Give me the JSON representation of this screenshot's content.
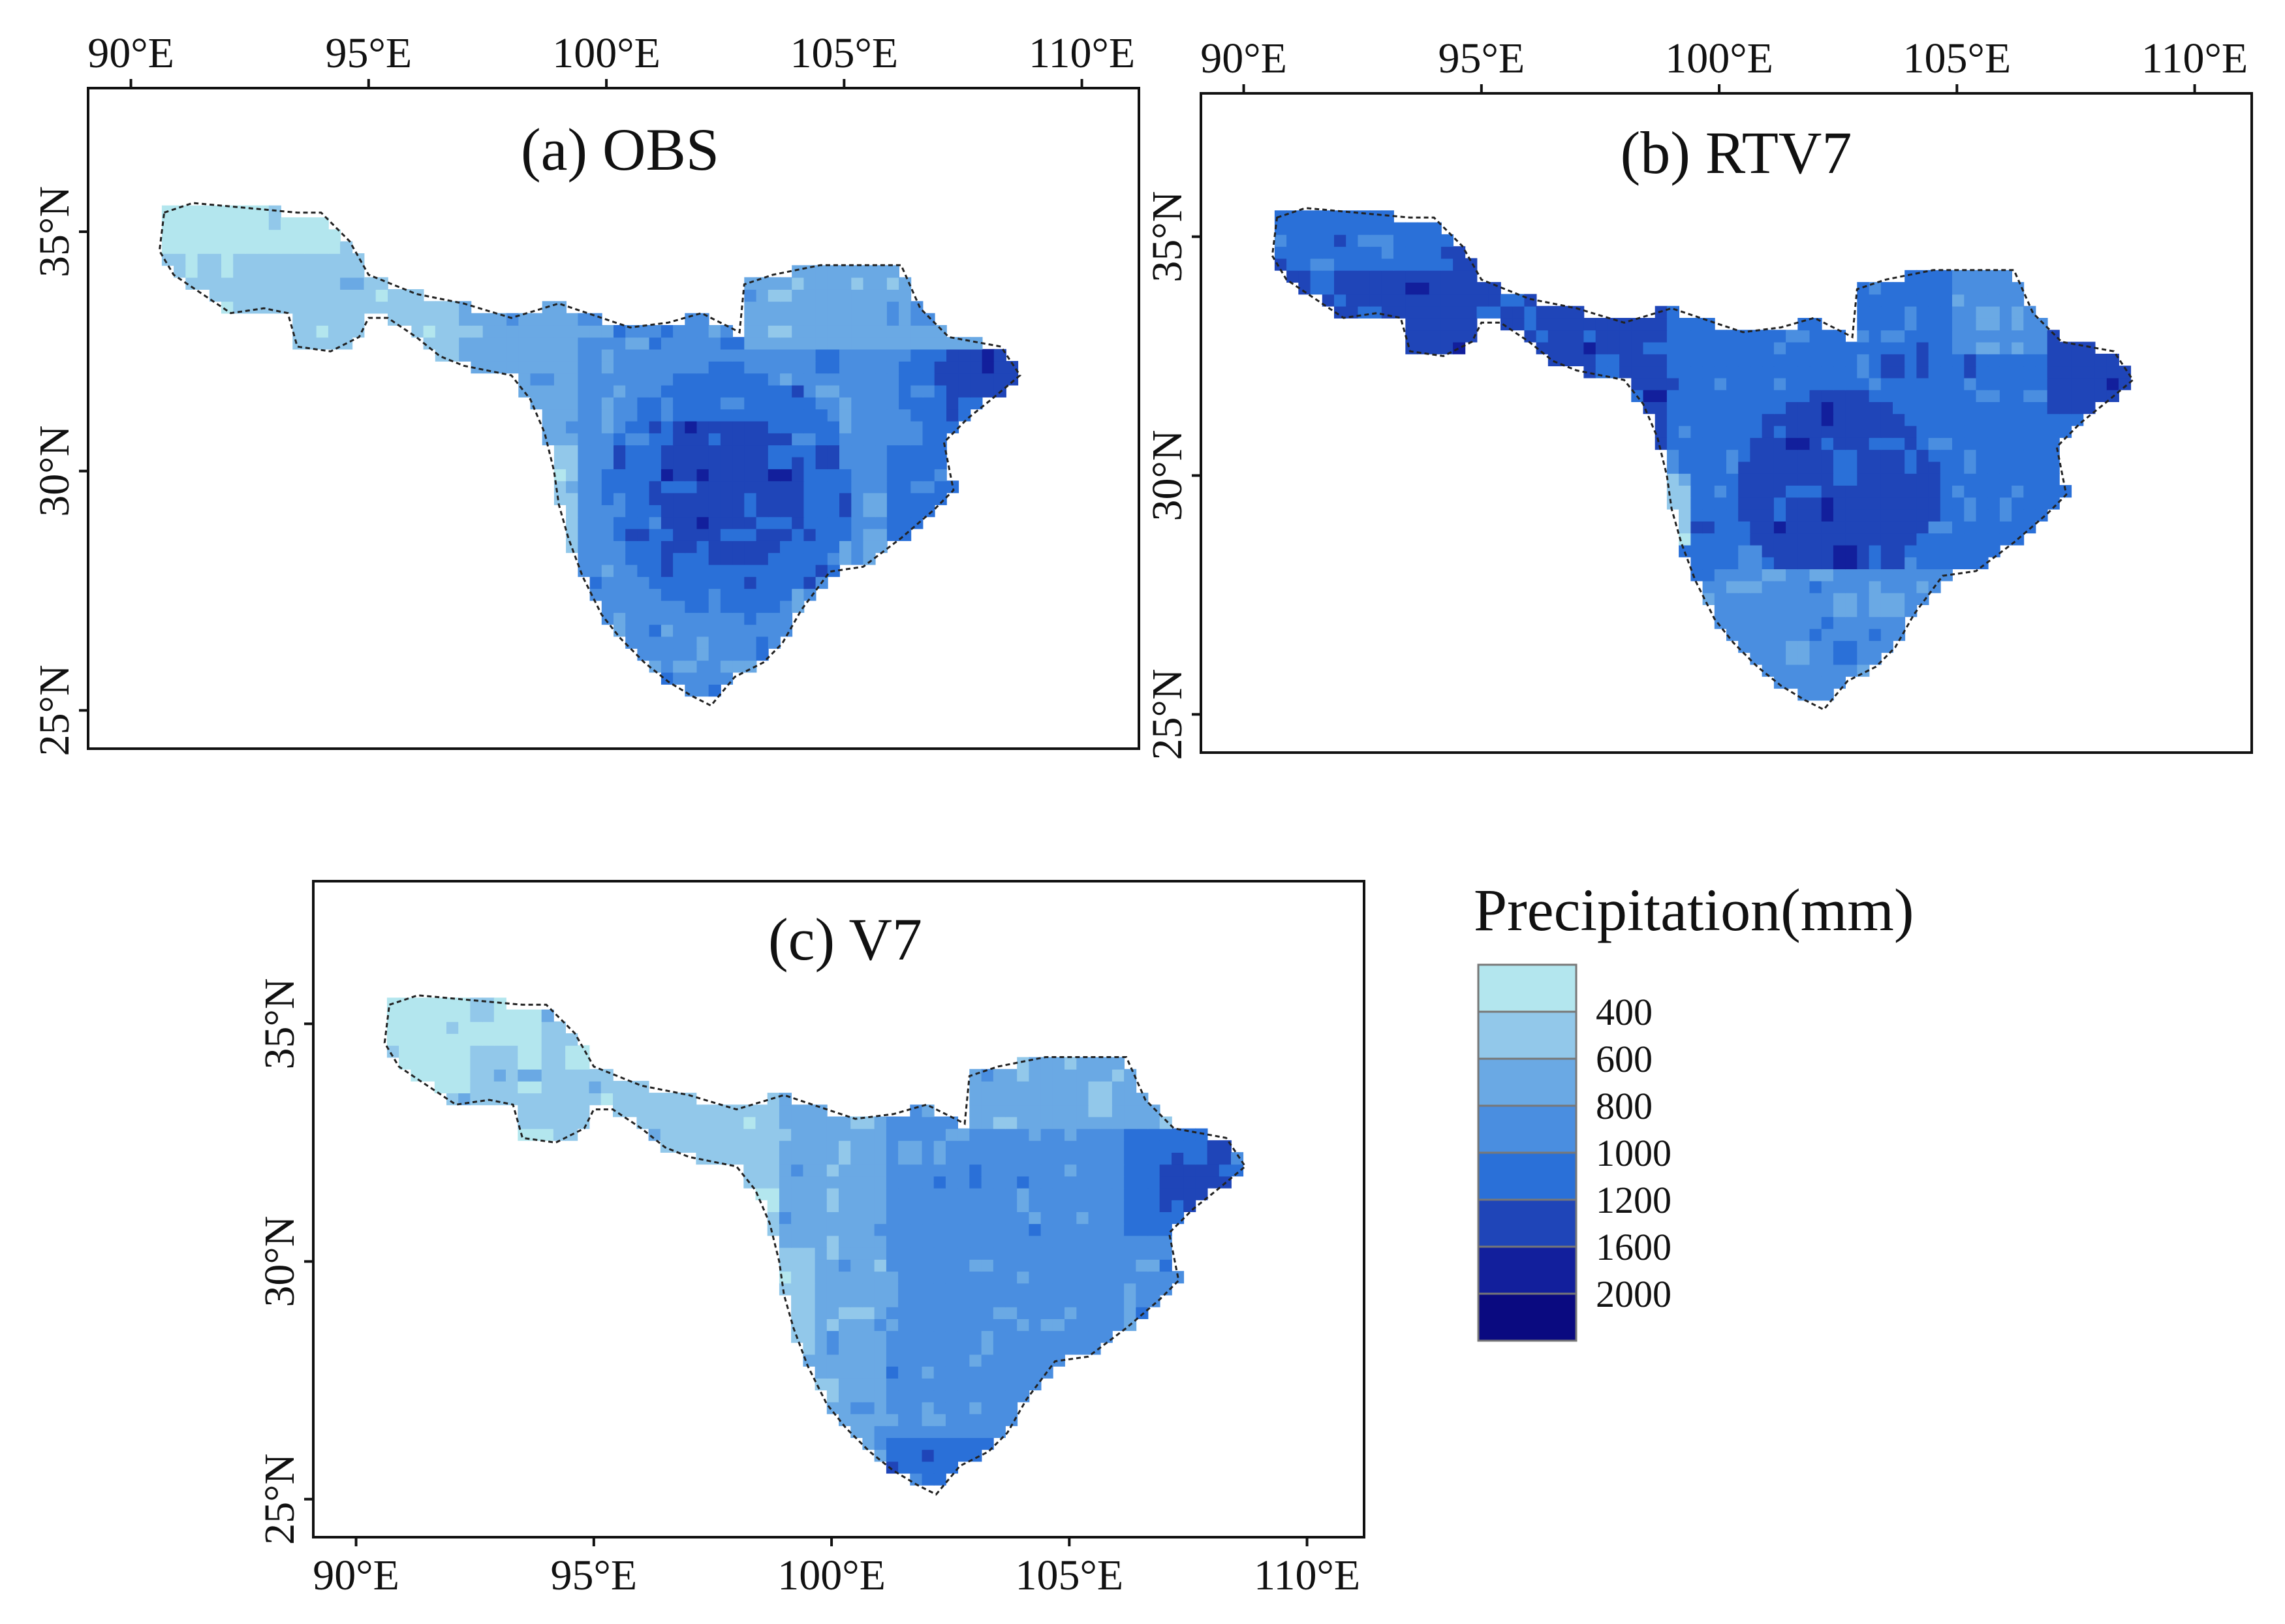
{
  "figure": {
    "panels": [
      {
        "id": "a",
        "title": "(a) OBS",
        "top_ticks": true,
        "bottom_ticks": false,
        "pattern": "obs"
      },
      {
        "id": "b",
        "title": "(b) RTV7",
        "top_ticks": true,
        "bottom_ticks": false,
        "pattern": "rtv7"
      },
      {
        "id": "c",
        "title": "(c) V7",
        "top_ticks": false,
        "bottom_ticks": true,
        "pattern": "v7"
      }
    ],
    "lon_ticks": [
      "90°E",
      "95°E",
      "100°E",
      "105°E",
      "110°E"
    ],
    "lon_values": [
      90,
      95,
      100,
      105,
      110
    ],
    "lat_ticks": [
      "35°N",
      "30°N",
      "25°N"
    ],
    "lat_values": [
      35,
      30,
      25
    ],
    "lon_range": [
      89.1,
      111.2
    ],
    "lat_range": [
      24.2,
      38.0
    ]
  },
  "legend": {
    "title": "Precipitation(mm)",
    "labels": [
      "400",
      "600",
      "800",
      "1000",
      "1200",
      "1600",
      "2000"
    ],
    "colors": [
      "#b3e6ee",
      "#92c8ea",
      "#6aa9e4",
      "#4a8ee0",
      "#2a70d8",
      "#1f45b8",
      "#121f9c",
      "#0a0a80"
    ]
  }
}
